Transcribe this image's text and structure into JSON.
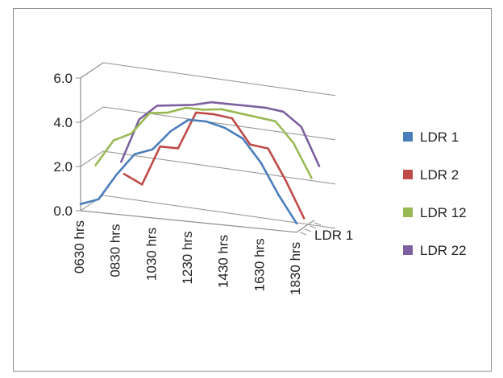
{
  "chart_data": {
    "type": "line",
    "view": "3d",
    "x": [
      "0630 hrs",
      "0730 hrs",
      "0830 hrs",
      "0930 hrs",
      "1030 hrs",
      "1130 hrs",
      "1230 hrs",
      "1330 hrs",
      "1430 hrs",
      "1530 hrs",
      "1630 hrs",
      "1730 hrs",
      "1830 hrs"
    ],
    "x_tick_labels": [
      "0630 hrs",
      "0830 hrs",
      "1030 hrs",
      "1230 hrs",
      "1430 hrs",
      "1630 hrs",
      "1830 hrs"
    ],
    "y_ticks": [
      "0.0",
      "2.0",
      "4.0",
      "6.0"
    ],
    "ylim": [
      0,
      6
    ],
    "depth_label": "LDR 1",
    "grid": true,
    "legend_position": "right",
    "series": [
      {
        "name": "LDR 1",
        "color": "#4a7ebb",
        "values": [
          0.3,
          0.6,
          1.8,
          2.8,
          3.1,
          4.0,
          4.6,
          4.6,
          4.4,
          4.0,
          3.0,
          1.6,
          0.4
        ]
      },
      {
        "name": "LDR 2",
        "color": "#be4b48",
        "values": [
          null,
          null,
          1.6,
          1.2,
          3.0,
          3.0,
          4.7,
          4.7,
          4.6,
          3.5,
          3.4,
          2.0,
          0.4
        ]
      },
      {
        "name": "LDR 12",
        "color": "#98b954",
        "values": [
          1.6,
          2.8,
          3.2,
          4.2,
          4.3,
          4.6,
          4.6,
          4.7,
          4.6,
          4.5,
          4.4,
          3.5,
          2.0
        ]
      },
      {
        "name": "LDR 22",
        "color": "#7d60a0",
        "values": [
          null,
          1.6,
          3.6,
          4.3,
          4.4,
          4.5,
          4.7,
          4.7,
          4.7,
          4.7,
          4.6,
          4.0,
          2.3
        ]
      }
    ]
  }
}
